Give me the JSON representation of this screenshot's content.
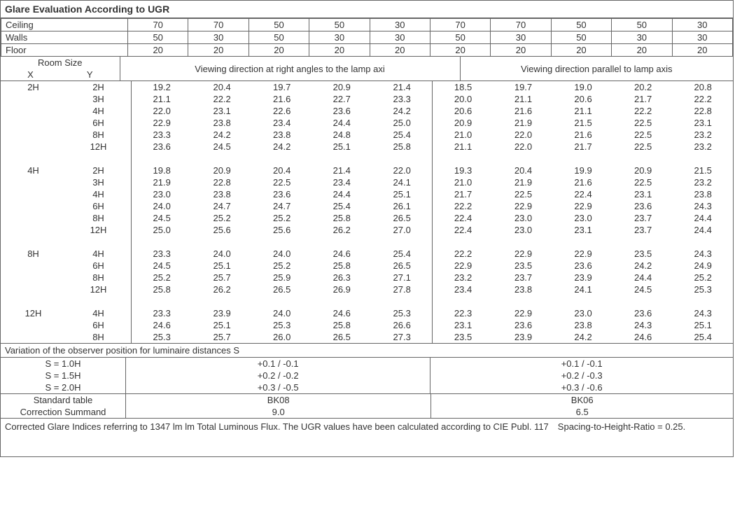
{
  "title": "Glare Evaluation According to UGR",
  "head": {
    "ceiling_label": "Ceiling",
    "walls_label": "Walls",
    "floor_label": "Floor",
    "ceiling": [
      "70",
      "70",
      "50",
      "50",
      "30",
      "70",
      "70",
      "50",
      "50",
      "30"
    ],
    "walls": [
      "50",
      "30",
      "50",
      "30",
      "30",
      "50",
      "30",
      "50",
      "30",
      "30"
    ],
    "floor": [
      "20",
      "20",
      "20",
      "20",
      "20",
      "20",
      "20",
      "20",
      "20",
      "20"
    ]
  },
  "subhead": {
    "room_size": "Room Size",
    "x": "X",
    "y": "Y",
    "left": "Viewing direction at right angles to the lamp axi",
    "right": "Viewing direction parallel to lamp axis"
  },
  "groups": [
    {
      "x": "2H",
      "rows": [
        {
          "y": "2H",
          "l": [
            "19.2",
            "20.4",
            "19.7",
            "20.9",
            "21.4"
          ],
          "r": [
            "18.5",
            "19.7",
            "19.0",
            "20.2",
            "20.8"
          ]
        },
        {
          "y": "3H",
          "l": [
            "21.1",
            "22.2",
            "21.6",
            "22.7",
            "23.3"
          ],
          "r": [
            "20.0",
            "21.1",
            "20.6",
            "21.7",
            "22.2"
          ]
        },
        {
          "y": "4H",
          "l": [
            "22.0",
            "23.1",
            "22.6",
            "23.6",
            "24.2"
          ],
          "r": [
            "20.6",
            "21.6",
            "21.1",
            "22.2",
            "22.8"
          ]
        },
        {
          "y": "6H",
          "l": [
            "22.9",
            "23.8",
            "23.4",
            "24.4",
            "25.0"
          ],
          "r": [
            "20.9",
            "21.9",
            "21.5",
            "22.5",
            "23.1"
          ]
        },
        {
          "y": "8H",
          "l": [
            "23.3",
            "24.2",
            "23.8",
            "24.8",
            "25.4"
          ],
          "r": [
            "21.0",
            "22.0",
            "21.6",
            "22.5",
            "23.2"
          ]
        },
        {
          "y": "12H",
          "l": [
            "23.6",
            "24.5",
            "24.2",
            "25.1",
            "25.8"
          ],
          "r": [
            "21.1",
            "22.0",
            "21.7",
            "22.5",
            "23.2"
          ]
        }
      ]
    },
    {
      "x": "4H",
      "rows": [
        {
          "y": "2H",
          "l": [
            "19.8",
            "20.9",
            "20.4",
            "21.4",
            "22.0"
          ],
          "r": [
            "19.3",
            "20.4",
            "19.9",
            "20.9",
            "21.5"
          ]
        },
        {
          "y": "3H",
          "l": [
            "21.9",
            "22.8",
            "22.5",
            "23.4",
            "24.1"
          ],
          "r": [
            "21.0",
            "21.9",
            "21.6",
            "22.5",
            "23.2"
          ]
        },
        {
          "y": "4H",
          "l": [
            "23.0",
            "23.8",
            "23.6",
            "24.4",
            "25.1"
          ],
          "r": [
            "21.7",
            "22.5",
            "22.4",
            "23.1",
            "23.8"
          ]
        },
        {
          "y": "6H",
          "l": [
            "24.0",
            "24.7",
            "24.7",
            "25.4",
            "26.1"
          ],
          "r": [
            "22.2",
            "22.9",
            "22.9",
            "23.6",
            "24.3"
          ]
        },
        {
          "y": "8H",
          "l": [
            "24.5",
            "25.2",
            "25.2",
            "25.8",
            "26.5"
          ],
          "r": [
            "22.4",
            "23.0",
            "23.0",
            "23.7",
            "24.4"
          ]
        },
        {
          "y": "12H",
          "l": [
            "25.0",
            "25.6",
            "25.6",
            "26.2",
            "27.0"
          ],
          "r": [
            "22.4",
            "23.0",
            "23.1",
            "23.7",
            "24.4"
          ]
        }
      ]
    },
    {
      "x": "8H",
      "rows": [
        {
          "y": "4H",
          "l": [
            "23.3",
            "24.0",
            "24.0",
            "24.6",
            "25.4"
          ],
          "r": [
            "22.2",
            "22.9",
            "22.9",
            "23.5",
            "24.3"
          ]
        },
        {
          "y": "6H",
          "l": [
            "24.5",
            "25.1",
            "25.2",
            "25.8",
            "26.5"
          ],
          "r": [
            "22.9",
            "23.5",
            "23.6",
            "24.2",
            "24.9"
          ]
        },
        {
          "y": "8H",
          "l": [
            "25.2",
            "25.7",
            "25.9",
            "26.3",
            "27.1"
          ],
          "r": [
            "23.2",
            "23.7",
            "23.9",
            "24.4",
            "25.2"
          ]
        },
        {
          "y": "12H",
          "l": [
            "25.8",
            "26.2",
            "26.5",
            "26.9",
            "27.8"
          ],
          "r": [
            "23.4",
            "23.8",
            "24.1",
            "24.5",
            "25.3"
          ]
        }
      ]
    },
    {
      "x": "12H",
      "rows": [
        {
          "y": "4H",
          "l": [
            "23.3",
            "23.9",
            "24.0",
            "24.6",
            "25.3"
          ],
          "r": [
            "22.3",
            "22.9",
            "23.0",
            "23.6",
            "24.3"
          ]
        },
        {
          "y": "6H",
          "l": [
            "24.6",
            "25.1",
            "25.3",
            "25.8",
            "26.6"
          ],
          "r": [
            "23.1",
            "23.6",
            "23.8",
            "24.3",
            "25.1"
          ]
        },
        {
          "y": "8H",
          "l": [
            "25.3",
            "25.7",
            "26.0",
            "26.5",
            "27.3"
          ],
          "r": [
            "23.5",
            "23.9",
            "24.2",
            "24.6",
            "25.4"
          ]
        }
      ]
    }
  ],
  "variation": {
    "title": "Variation of the observer position for luminaire distances S",
    "rows": [
      {
        "s": "S = 1.0H",
        "l": "+0.1 / -0.1",
        "r": "+0.1 / -0.1"
      },
      {
        "s": "S = 1.5H",
        "l": "+0.2 / -0.2",
        "r": "+0.2 / -0.3"
      },
      {
        "s": "S = 2.0H",
        "l": "+0.3 / -0.5",
        "r": "+0.3 / -0.6"
      }
    ]
  },
  "std": {
    "std_label": "Standard table",
    "std_l": "BK08",
    "std_r": "BK06",
    "corr_label": "Correction Summand",
    "corr_l": "9.0",
    "corr_r": "6.5"
  },
  "footer": "Corrected Glare Indices referring to 1347 lm lm Total Luminous Flux. The UGR values have been calculated according to CIE Publ. 117 Spacing-to-Height-Ratio = 0.25."
}
